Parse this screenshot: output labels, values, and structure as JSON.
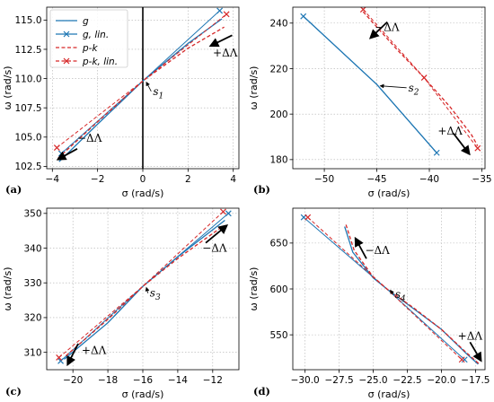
{
  "colors": {
    "g": "#1f77b4",
    "pk": "#d62728",
    "grid": "#b0b0b0"
  },
  "legend": {
    "placement": "top-left of panel (a)",
    "entries": [
      {
        "label": "g",
        "style": "solid",
        "color": "#1f77b4",
        "marker": "none"
      },
      {
        "label": "g, lin.",
        "style": "solid",
        "color": "#1f77b4",
        "marker": "x"
      },
      {
        "label": "p-k",
        "style": "dashed",
        "color": "#d62728",
        "marker": "none"
      },
      {
        "label": "p-k, lin.",
        "style": "dashed",
        "color": "#d62728",
        "marker": "x"
      }
    ]
  },
  "chart_data": [
    {
      "panel": "(a)",
      "type": "line",
      "xlabel": "σ (rad/s)",
      "ylabel": "ω (rad/s)",
      "xlim": [
        -4.25,
        4.25
      ],
      "ylim": [
        102.3,
        116.1
      ],
      "xticks": [
        {
          "v": -4,
          "t": "−4"
        },
        {
          "v": -2,
          "t": "−2"
        },
        {
          "v": 0,
          "t": "0"
        },
        {
          "v": 2,
          "t": "2"
        },
        {
          "v": 4,
          "t": "4"
        }
      ],
      "yticks": [
        {
          "v": 102.5,
          "t": "102.5"
        },
        {
          "v": 105.0,
          "t": "105.0"
        },
        {
          "v": 107.5,
          "t": "107.5"
        },
        {
          "v": 110.0,
          "t": "110.0"
        },
        {
          "v": 112.5,
          "t": "112.5"
        },
        {
          "v": 115.0,
          "t": "115.0"
        }
      ],
      "grid": true,
      "vline": 0,
      "series": [
        {
          "key": "g",
          "x": [
            -3.7,
            -2,
            0,
            2,
            3.5
          ],
          "y": [
            102.9,
            106.1,
            109.8,
            113.0,
            115.1
          ]
        },
        {
          "key": "g_lin",
          "x": [
            -3.6,
            0,
            3.4
          ],
          "y": [
            103.6,
            109.8,
            115.8
          ],
          "markers": [
            0,
            2
          ]
        },
        {
          "key": "pk",
          "x": [
            -3.75,
            -2,
            0,
            2,
            3.6
          ],
          "y": [
            103.2,
            106.3,
            109.8,
            112.6,
            114.4
          ]
        },
        {
          "key": "pk_lin",
          "x": [
            -3.8,
            0,
            3.7
          ],
          "y": [
            104.1,
            109.8,
            115.5
          ],
          "markers": [
            0,
            2
          ]
        }
      ],
      "point": {
        "label": "s",
        "sub": "1",
        "x": 0,
        "y": 109.8,
        "text_at": [
          0.45,
          108.6
        ]
      },
      "arrows": [
        {
          "label": "+ΔΛ",
          "from": [
            3.95,
            113.7
          ],
          "to": [
            3.0,
            112.8
          ],
          "text_at": [
            3.1,
            111.9
          ]
        },
        {
          "label": "−ΔΛ",
          "from": [
            -2.9,
            104.0
          ],
          "to": [
            -3.75,
            103.1
          ],
          "text_at": [
            -2.9,
            104.6
          ]
        }
      ]
    },
    {
      "panel": "(b)",
      "type": "line",
      "xlabel": "σ (rad/s)",
      "ylabel": "ω (rad/s)",
      "xlim": [
        -53.0,
        -34.7
      ],
      "ylim": [
        176,
        247
      ],
      "xticks": [
        {
          "v": -50,
          "t": "−50"
        },
        {
          "v": -45,
          "t": "−45"
        },
        {
          "v": -40,
          "t": "−40"
        },
        {
          "v": -35,
          "t": "−35"
        }
      ],
      "yticks": [
        {
          "v": 180,
          "t": "180"
        },
        {
          "v": 200,
          "t": "200"
        },
        {
          "v": 220,
          "t": "220"
        },
        {
          "v": 240,
          "t": "240"
        }
      ],
      "grid": true,
      "series": [
        {
          "key": "g",
          "x": [
            -52,
            -45,
            -39.3
          ],
          "y": [
            243,
            213,
            183
          ]
        },
        {
          "key": "g_lin",
          "x": [
            -52,
            -45,
            -39.3
          ],
          "y": [
            243,
            213,
            183
          ],
          "markers": [
            0,
            2
          ]
        },
        {
          "key": "pk",
          "x": [
            -46.3,
            -43,
            -40.5,
            -38,
            -36,
            -35.4
          ],
          "y": [
            245,
            228,
            216,
            203,
            191,
            186
          ]
        },
        {
          "key": "pk_lin",
          "x": [
            -46.3,
            -40.5,
            -35.4
          ],
          "y": [
            246,
            216,
            185
          ],
          "markers": [
            0,
            1,
            2
          ]
        }
      ],
      "point": {
        "label": "s",
        "sub": "2",
        "x": -45,
        "y": 213,
        "text_at": [
          -42.0,
          210
        ]
      },
      "arrows": [
        {
          "label": "−ΔΛ",
          "from": [
            -44.0,
            240.5
          ],
          "to": [
            -45.6,
            233.5
          ],
          "text_at": [
            -45.2,
            236.5
          ]
        },
        {
          "label": "+ΔΛ",
          "from": [
            -37.7,
            191.5
          ],
          "to": [
            -36.2,
            182.5
          ],
          "text_at": [
            -39.2,
            191
          ]
        }
      ]
    },
    {
      "panel": "(c)",
      "type": "line",
      "xlabel": "σ (rad/s)",
      "ylabel": "ω (rad/s)",
      "xlim": [
        -21.5,
        -10.5
      ],
      "ylim": [
        305,
        351.5
      ],
      "xticks": [
        {
          "v": -20,
          "t": "−20"
        },
        {
          "v": -18,
          "t": "−18"
        },
        {
          "v": -16,
          "t": "−16"
        },
        {
          "v": -14,
          "t": "−14"
        },
        {
          "v": -12,
          "t": "−12"
        }
      ],
      "yticks": [
        {
          "v": 310,
          "t": "310"
        },
        {
          "v": 320,
          "t": "320"
        },
        {
          "v": 330,
          "t": "330"
        },
        {
          "v": 340,
          "t": "340"
        },
        {
          "v": 350,
          "t": "350"
        }
      ],
      "grid": true,
      "series": [
        {
          "key": "g",
          "x": [
            -20.5,
            -18,
            -16,
            -14,
            -11.3
          ],
          "y": [
            308,
            318.5,
            329,
            337.5,
            348
          ]
        },
        {
          "key": "g_lin",
          "x": [
            -20.7,
            -16,
            -11.1
          ],
          "y": [
            307.5,
            329,
            350
          ],
          "markers": [
            0,
            2
          ]
        },
        {
          "key": "pk",
          "x": [
            -20.4,
            -18,
            -16,
            -14,
            -11.5
          ],
          "y": [
            309,
            319.5,
            329,
            337,
            346
          ]
        },
        {
          "key": "pk_lin",
          "x": [
            -20.8,
            -16,
            -11.4
          ],
          "y": [
            308.5,
            329,
            350.5
          ],
          "markers": [
            0,
            2
          ]
        }
      ],
      "point": {
        "label": "s",
        "sub": "3",
        "x": -16,
        "y": 329,
        "text_at": [
          -15.6,
          326
        ]
      },
      "arrows": [
        {
          "label": "−ΔΛ",
          "from": [
            -12.4,
            341.5
          ],
          "to": [
            -11.2,
            346.5
          ],
          "text_at": [
            -12.6,
            339
          ]
        },
        {
          "label": "+ΔΛ",
          "from": [
            -19.7,
            312.5
          ],
          "to": [
            -20.3,
            306.5
          ],
          "text_at": [
            -19.5,
            309.5
          ]
        }
      ]
    },
    {
      "panel": "(d)",
      "type": "line",
      "xlabel": "σ (rad/s)",
      "ylabel": "ω (rad/s)",
      "xlim": [
        -30.9,
        -16.8
      ],
      "ylim": [
        512,
        688
      ],
      "xticks": [
        {
          "v": -30.0,
          "t": "−30.0"
        },
        {
          "v": -27.5,
          "t": "−27.5"
        },
        {
          "v": -25.0,
          "t": "−25.0"
        },
        {
          "v": -22.5,
          "t": "−22.5"
        },
        {
          "v": -20.0,
          "t": "−20.0"
        },
        {
          "v": -17.5,
          "t": "−17.5"
        }
      ],
      "yticks": [
        {
          "v": 550,
          "t": "550"
        },
        {
          "v": 600,
          "t": "600"
        },
        {
          "v": 650,
          "t": "650"
        }
      ],
      "grid": true,
      "series": [
        {
          "key": "g",
          "x": [
            -27.1,
            -26.5,
            -25,
            -24,
            -22,
            -20,
            -18.2,
            -17.3
          ],
          "y": [
            668,
            640,
            612,
            600,
            578,
            556,
            530,
            518
          ]
        },
        {
          "key": "g_lin",
          "x": [
            -30.1,
            -24,
            -18.3
          ],
          "y": [
            678,
            600,
            523
          ],
          "markers": [
            0,
            2
          ]
        },
        {
          "key": "pk",
          "x": [
            -27.0,
            -26.4,
            -25,
            -24,
            -22,
            -20,
            -18.2,
            -17.2
          ],
          "y": [
            670,
            642,
            613,
            600,
            579,
            556,
            531,
            518
          ]
        },
        {
          "key": "pk_lin",
          "x": [
            -29.8,
            -24,
            -18.5
          ],
          "y": [
            678,
            600,
            523
          ],
          "markers": [
            0,
            2
          ]
        }
      ],
      "point": {
        "label": "s",
        "sub": "4",
        "x": -24,
        "y": 600,
        "text_at": [
          -23.4,
          590
        ]
      },
      "arrows": [
        {
          "label": "−ΔΛ",
          "from": [
            -25.5,
            633
          ],
          "to": [
            -26.3,
            655
          ],
          "text_at": [
            -25.6,
            638
          ]
        },
        {
          "label": "+ΔΛ",
          "from": [
            -17.9,
            542
          ],
          "to": [
            -17.1,
            522
          ],
          "text_at": [
            -18.8,
            545
          ]
        }
      ]
    }
  ]
}
